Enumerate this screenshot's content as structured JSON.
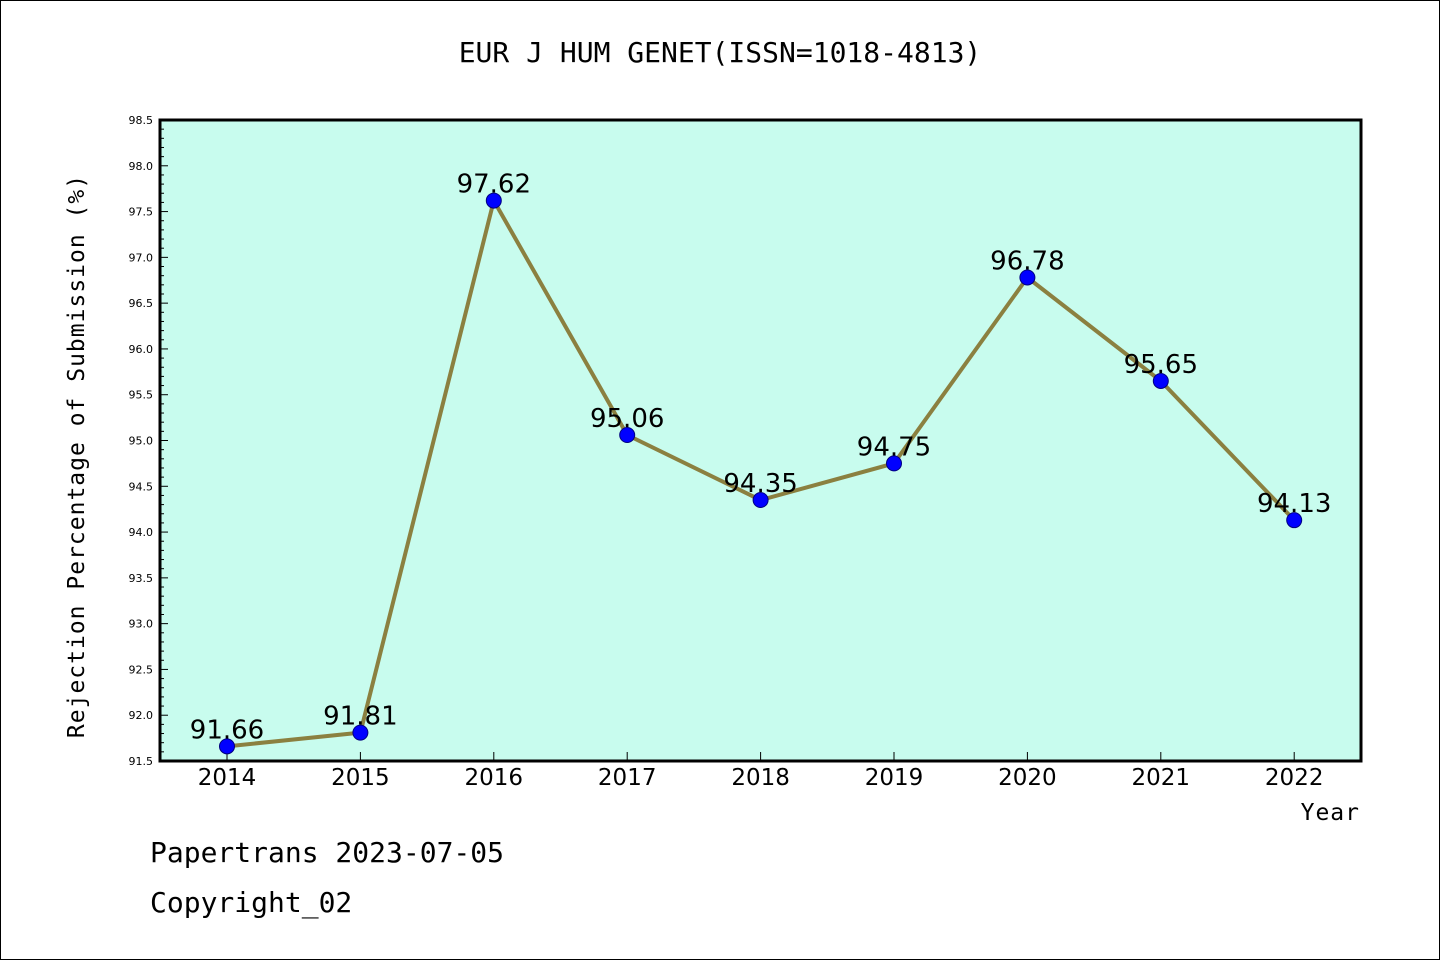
{
  "chart_data": {
    "type": "line",
    "title": "EUR J HUM GENET(ISSN=1018-4813)",
    "xlabel": "Year",
    "ylabel": "Rejection Percentage of Submission (%)",
    "categories": [
      "2014",
      "2015",
      "2016",
      "2017",
      "2018",
      "2019",
      "2020",
      "2021",
      "2022"
    ],
    "series": [
      {
        "values": [
          91.66,
          91.81,
          97.62,
          95.06,
          94.35,
          94.75,
          96.78,
          95.65,
          94.13
        ]
      }
    ],
    "data_labels": [
      "91.66",
      "91.81",
      "97.62",
      "95.06",
      "94.35",
      "94.75",
      "96.78",
      "95.65",
      "94.13"
    ],
    "ylim": [
      91.5,
      98.5
    ],
    "yticks": [
      "91.5",
      "92.0",
      "92.5",
      "93.0",
      "93.5",
      "94.0",
      "94.5",
      "95.0",
      "95.5",
      "96.0",
      "96.5",
      "97.0",
      "97.5",
      "98.0",
      "98.5"
    ],
    "grid": false,
    "colors": {
      "plot_background": "#c8fcee",
      "line": "#8b8040",
      "marker": "#0000ff"
    }
  },
  "footer": {
    "line1": "Papertrans 2023-07-05",
    "line2": "Copyright_02"
  }
}
